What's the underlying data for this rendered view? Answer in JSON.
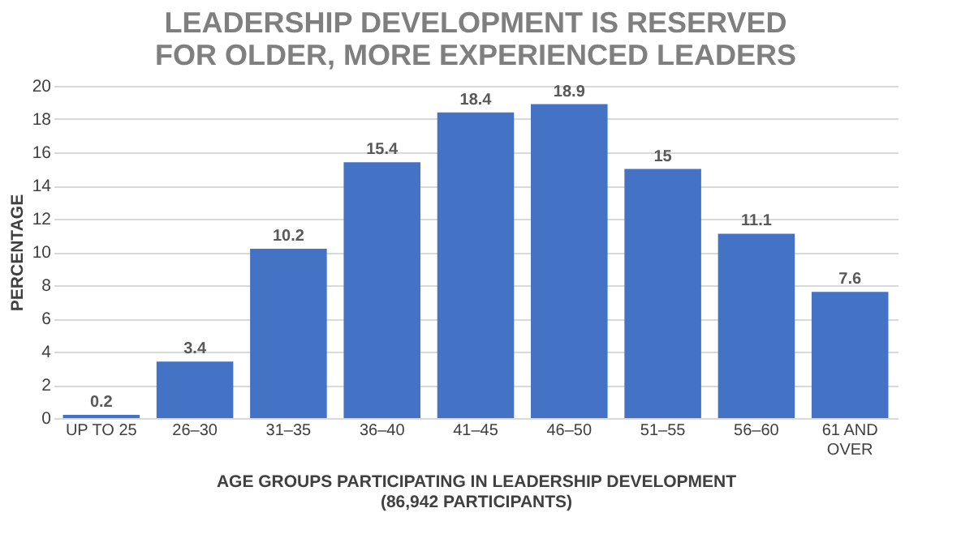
{
  "chart_data": {
    "type": "bar",
    "title": "LEADERSHIP DEVELOPMENT IS RESERVED FOR OLDER, MORE EXPERIENCED LEADERS",
    "categories": [
      "UP TO 25",
      "26–30",
      "31–35",
      "36–40",
      "41–45",
      "46–50",
      "51–55",
      "56–60",
      "61 AND OVER"
    ],
    "values": [
      0.2,
      3.4,
      10.2,
      15.4,
      18.4,
      18.9,
      15,
      11.1,
      7.6
    ],
    "color": "#4472c4",
    "xlabel": "AGE GROUPS PARTICIPATING IN LEADERSHIP DEVELOPMENT (86,942 PARTICIPANTS)",
    "ylabel": "PERCENTAGE",
    "ylim": [
      0,
      20
    ],
    "yticks": [
      0,
      2,
      4,
      6,
      8,
      10,
      12,
      14,
      16,
      18,
      20
    ],
    "grid": "y",
    "data_labels": true
  }
}
